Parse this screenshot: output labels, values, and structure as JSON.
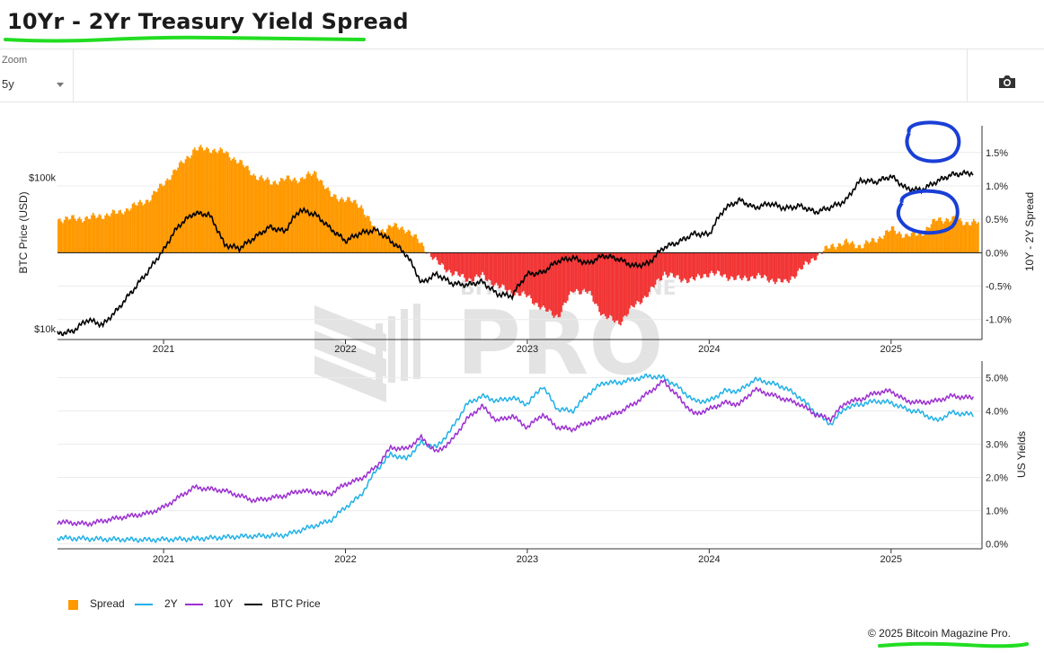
{
  "page": {
    "title": "10Yr - 2Yr Treasury Yield Spread",
    "copyright": "© 2025 Bitcoin Magazine Pro."
  },
  "toolbar": {
    "zoom_label": "Zoom",
    "zoom_value": "5y",
    "camera_icon": "camera-icon"
  },
  "colors": {
    "spread_positive": "#ff9900",
    "spread_negative": "#f23535",
    "two_year": "#1fb0e6",
    "ten_year": "#9b30d0",
    "btc_price": "#000000",
    "highlight_green": "#22dd22",
    "highlight_blue": "#1a3fd6"
  },
  "legend": [
    {
      "label": "Spread",
      "icon": "square-marker-icon",
      "color": "#ff9900"
    },
    {
      "label": "2Y",
      "icon": "line-icon",
      "color": "#1fb0e6"
    },
    {
      "label": "10Y",
      "icon": "line-icon",
      "color": "#9b30d0"
    },
    {
      "label": "BTC Price",
      "icon": "line-icon",
      "color": "#000000"
    }
  ],
  "chart_data": [
    {
      "type": "area",
      "panel": "top",
      "x_ticks": [
        "2021",
        "2022",
        "2023",
        "2024",
        "2025"
      ],
      "x_range": [
        "2020-06",
        "2025-07"
      ],
      "y_left": {
        "label": "BTC Price (USD)",
        "scale": "log",
        "ticks": [
          "$10k",
          "$100k"
        ],
        "ylim": [
          8500,
          220000
        ]
      },
      "y_right": {
        "label": "10Y - 2Y Spread",
        "ticks": [
          "1.5%",
          "1.0%",
          "0.5%",
          "0.0%",
          "-0.5%",
          "-1.0%"
        ],
        "ylim": [
          -1.3,
          1.9
        ]
      },
      "series": [
        {
          "name": "Spread",
          "axis": "right",
          "unit": "%",
          "points": [
            [
              "2020-06",
              0.5
            ],
            [
              "2020-08",
              0.52
            ],
            [
              "2020-10",
              0.6
            ],
            [
              "2020-12",
              0.8
            ],
            [
              "2021-02",
              1.3
            ],
            [
              "2021-03",
              1.55
            ],
            [
              "2021-04",
              1.55
            ],
            [
              "2021-05",
              1.5
            ],
            [
              "2021-06",
              1.35
            ],
            [
              "2021-07",
              1.15
            ],
            [
              "2021-08",
              1.05
            ],
            [
              "2021-09",
              1.1
            ],
            [
              "2021-10",
              1.1
            ],
            [
              "2021-11",
              1.2
            ],
            [
              "2021-12",
              0.85
            ],
            [
              "2022-01",
              0.8
            ],
            [
              "2022-02",
              0.7
            ],
            [
              "2022-03",
              0.3
            ],
            [
              "2022-04",
              0.4
            ],
            [
              "2022-05",
              0.35
            ],
            [
              "2022-06",
              0.12
            ],
            [
              "2022-07",
              -0.15
            ],
            [
              "2022-08",
              -0.3
            ],
            [
              "2022-09",
              -0.4
            ],
            [
              "2022-10",
              -0.35
            ],
            [
              "2022-11",
              -0.5
            ],
            [
              "2022-12",
              -0.6
            ],
            [
              "2023-01",
              -0.65
            ],
            [
              "2023-02",
              -0.85
            ],
            [
              "2023-03",
              -0.95
            ],
            [
              "2023-04",
              -0.55
            ],
            [
              "2023-05",
              -0.6
            ],
            [
              "2023-06",
              -0.95
            ],
            [
              "2023-07",
              -1.05
            ],
            [
              "2023-08",
              -0.8
            ],
            [
              "2023-09",
              -0.6
            ],
            [
              "2023-10",
              -0.3
            ],
            [
              "2023-11",
              -0.4
            ],
            [
              "2023-12",
              -0.4
            ],
            [
              "2024-01",
              -0.3
            ],
            [
              "2024-02",
              -0.35
            ],
            [
              "2024-03",
              -0.4
            ],
            [
              "2024-04",
              -0.35
            ],
            [
              "2024-05",
              -0.4
            ],
            [
              "2024-06",
              -0.45
            ],
            [
              "2024-07",
              -0.25
            ],
            [
              "2024-08",
              -0.05
            ],
            [
              "2024-09",
              0.1
            ],
            [
              "2024-10",
              0.15
            ],
            [
              "2024-11",
              0.1
            ],
            [
              "2024-12",
              0.2
            ],
            [
              "2025-01",
              0.35
            ],
            [
              "2025-02",
              0.25
            ],
            [
              "2025-03",
              0.3
            ],
            [
              "2025-04",
              0.5
            ],
            [
              "2025-05",
              0.5
            ],
            [
              "2025-06",
              0.45
            ]
          ]
        },
        {
          "name": "BTC Price",
          "axis": "left",
          "unit": "USD",
          "points": [
            [
              "2020-06",
              9300
            ],
            [
              "2020-07",
              9600
            ],
            [
              "2020-08",
              11500
            ],
            [
              "2020-09",
              10600
            ],
            [
              "2020-10",
              13500
            ],
            [
              "2020-11",
              18000
            ],
            [
              "2020-12",
              24000
            ],
            [
              "2021-01",
              33000
            ],
            [
              "2021-02",
              48000
            ],
            [
              "2021-03",
              58000
            ],
            [
              "2021-04",
              57000
            ],
            [
              "2021-05",
              36000
            ],
            [
              "2021-06",
              34000
            ],
            [
              "2021-07",
              40000
            ],
            [
              "2021-08",
              47000
            ],
            [
              "2021-09",
              44000
            ],
            [
              "2021-10",
              61000
            ],
            [
              "2021-11",
              57000
            ],
            [
              "2021-12",
              46000
            ],
            [
              "2022-01",
              38000
            ],
            [
              "2022-02",
              43000
            ],
            [
              "2022-03",
              45000
            ],
            [
              "2022-04",
              38000
            ],
            [
              "2022-05",
              31000
            ],
            [
              "2022-06",
              20000
            ],
            [
              "2022-07",
              23000
            ],
            [
              "2022-08",
              20000
            ],
            [
              "2022-09",
              19500
            ],
            [
              "2022-10",
              20500
            ],
            [
              "2022-11",
              17000
            ],
            [
              "2022-12",
              16500
            ],
            [
              "2023-01",
              23000
            ],
            [
              "2023-02",
              23500
            ],
            [
              "2023-03",
              28000
            ],
            [
              "2023-04",
              29500
            ],
            [
              "2023-05",
              27000
            ],
            [
              "2023-06",
              30500
            ],
            [
              "2023-07",
              29000
            ],
            [
              "2023-08",
              26000
            ],
            [
              "2023-09",
              27000
            ],
            [
              "2023-10",
              34500
            ],
            [
              "2023-11",
              37500
            ],
            [
              "2023-12",
              42500
            ],
            [
              "2024-01",
              42000
            ],
            [
              "2024-02",
              62000
            ],
            [
              "2024-03",
              71000
            ],
            [
              "2024-04",
              63000
            ],
            [
              "2024-05",
              67500
            ],
            [
              "2024-06",
              62500
            ],
            [
              "2024-07",
              65000
            ],
            [
              "2024-08",
              59000
            ],
            [
              "2024-09",
              63500
            ],
            [
              "2024-10",
              70000
            ],
            [
              "2024-11",
              96000
            ],
            [
              "2024-12",
              93500
            ],
            [
              "2025-01",
              102000
            ],
            [
              "2025-02",
              84500
            ],
            [
              "2025-03",
              82500
            ],
            [
              "2025-04",
              94000
            ],
            [
              "2025-05",
              104500
            ],
            [
              "2025-06",
              107000
            ]
          ]
        }
      ]
    },
    {
      "type": "line",
      "panel": "bottom",
      "x_ticks": [
        "2021",
        "2022",
        "2023",
        "2024",
        "2025"
      ],
      "x_range": [
        "2020-06",
        "2025-07"
      ],
      "y_right": {
        "label": "US Yields",
        "ticks": [
          "5.0%",
          "4.0%",
          "3.0%",
          "2.0%",
          "1.0%",
          "0.0%"
        ],
        "ylim": [
          -0.15,
          5.5
        ]
      },
      "series": [
        {
          "name": "2Y",
          "unit": "%",
          "points": [
            [
              "2020-06",
              0.18
            ],
            [
              "2020-09",
              0.14
            ],
            [
              "2020-12",
              0.12
            ],
            [
              "2021-03",
              0.15
            ],
            [
              "2021-06",
              0.22
            ],
            [
              "2021-09",
              0.26
            ],
            [
              "2021-11",
              0.55
            ],
            [
              "2021-12",
              0.7
            ],
            [
              "2022-01",
              1.1
            ],
            [
              "2022-02",
              1.45
            ],
            [
              "2022-03",
              2.2
            ],
            [
              "2022-04",
              2.7
            ],
            [
              "2022-05",
              2.55
            ],
            [
              "2022-06",
              3.05
            ],
            [
              "2022-07",
              2.9
            ],
            [
              "2022-08",
              3.45
            ],
            [
              "2022-09",
              4.2
            ],
            [
              "2022-10",
              4.45
            ],
            [
              "2022-11",
              4.3
            ],
            [
              "2022-12",
              4.4
            ],
            [
              "2023-01",
              4.2
            ],
            [
              "2023-02",
              4.75
            ],
            [
              "2023-03",
              4.05
            ],
            [
              "2023-04",
              4.0
            ],
            [
              "2023-05",
              4.5
            ],
            [
              "2023-06",
              4.85
            ],
            [
              "2023-07",
              4.85
            ],
            [
              "2023-08",
              4.95
            ],
            [
              "2023-09",
              5.05
            ],
            [
              "2023-10",
              5.0
            ],
            [
              "2023-11",
              4.7
            ],
            [
              "2023-12",
              4.3
            ],
            [
              "2024-01",
              4.3
            ],
            [
              "2024-02",
              4.6
            ],
            [
              "2024-03",
              4.6
            ],
            [
              "2024-04",
              4.95
            ],
            [
              "2024-05",
              4.85
            ],
            [
              "2024-06",
              4.7
            ],
            [
              "2024-07",
              4.4
            ],
            [
              "2024-08",
              3.95
            ],
            [
              "2024-09",
              3.6
            ],
            [
              "2024-10",
              4.1
            ],
            [
              "2024-11",
              4.2
            ],
            [
              "2024-12",
              4.3
            ],
            [
              "2025-01",
              4.25
            ],
            [
              "2025-02",
              4.05
            ],
            [
              "2025-03",
              3.95
            ],
            [
              "2025-04",
              3.7
            ],
            [
              "2025-05",
              3.95
            ],
            [
              "2025-06",
              3.9
            ]
          ]
        },
        {
          "name": "10Y",
          "unit": "%",
          "points": [
            [
              "2020-06",
              0.66
            ],
            [
              "2020-08",
              0.6
            ],
            [
              "2020-10",
              0.78
            ],
            [
              "2020-12",
              0.92
            ],
            [
              "2021-01",
              1.1
            ],
            [
              "2021-02",
              1.4
            ],
            [
              "2021-03",
              1.7
            ],
            [
              "2021-05",
              1.6
            ],
            [
              "2021-07",
              1.3
            ],
            [
              "2021-09",
              1.45
            ],
            [
              "2021-10",
              1.6
            ],
            [
              "2021-12",
              1.5
            ],
            [
              "2022-01",
              1.8
            ],
            [
              "2022-02",
              1.95
            ],
            [
              "2022-03",
              2.3
            ],
            [
              "2022-04",
              2.9
            ],
            [
              "2022-05",
              2.85
            ],
            [
              "2022-06",
              3.2
            ],
            [
              "2022-07",
              2.75
            ],
            [
              "2022-08",
              3.1
            ],
            [
              "2022-09",
              3.75
            ],
            [
              "2022-10",
              4.15
            ],
            [
              "2022-11",
              3.7
            ],
            [
              "2022-12",
              3.85
            ],
            [
              "2023-01",
              3.5
            ],
            [
              "2023-02",
              3.9
            ],
            [
              "2023-03",
              3.5
            ],
            [
              "2023-04",
              3.45
            ],
            [
              "2023-05",
              3.65
            ],
            [
              "2023-06",
              3.8
            ],
            [
              "2023-07",
              3.95
            ],
            [
              "2023-08",
              4.2
            ],
            [
              "2023-09",
              4.55
            ],
            [
              "2023-10",
              4.9
            ],
            [
              "2023-11",
              4.4
            ],
            [
              "2023-12",
              3.9
            ],
            [
              "2024-01",
              4.05
            ],
            [
              "2024-02",
              4.25
            ],
            [
              "2024-03",
              4.2
            ],
            [
              "2024-04",
              4.65
            ],
            [
              "2024-05",
              4.5
            ],
            [
              "2024-06",
              4.35
            ],
            [
              "2024-07",
              4.2
            ],
            [
              "2024-08",
              3.9
            ],
            [
              "2024-09",
              3.75
            ],
            [
              "2024-10",
              4.25
            ],
            [
              "2024-11",
              4.35
            ],
            [
              "2024-12",
              4.55
            ],
            [
              "2025-01",
              4.6
            ],
            [
              "2025-02",
              4.3
            ],
            [
              "2025-03",
              4.25
            ],
            [
              "2025-04",
              4.3
            ],
            [
              "2025-05",
              4.45
            ],
            [
              "2025-06",
              4.4
            ]
          ]
        }
      ]
    }
  ]
}
